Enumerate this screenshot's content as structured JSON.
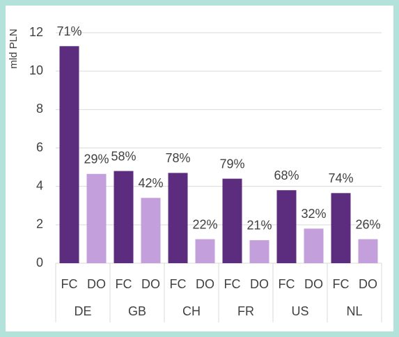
{
  "chart_data": {
    "type": "bar",
    "y_label": "mld PLN",
    "categories": [
      "DE",
      "GB",
      "CH",
      "FR",
      "US",
      "NL"
    ],
    "series": [
      {
        "name": "FC",
        "color": "#5c2d7e",
        "values": [
          11.3,
          4.8,
          4.7,
          4.4,
          3.8,
          3.65
        ],
        "data_labels": [
          "71%",
          "58%",
          "78%",
          "79%",
          "68%",
          "74%"
        ]
      },
      {
        "name": "DO",
        "color": "#c39fdc",
        "values": [
          4.65,
          3.4,
          1.25,
          1.2,
          1.8,
          1.25
        ],
        "data_labels": [
          "29%",
          "42%",
          "22%",
          "21%",
          "32%",
          "26%"
        ]
      }
    ],
    "ylim": [
      0,
      12
    ],
    "yticks": [
      0,
      2,
      4,
      6,
      8,
      10,
      12
    ],
    "grid": true
  }
}
